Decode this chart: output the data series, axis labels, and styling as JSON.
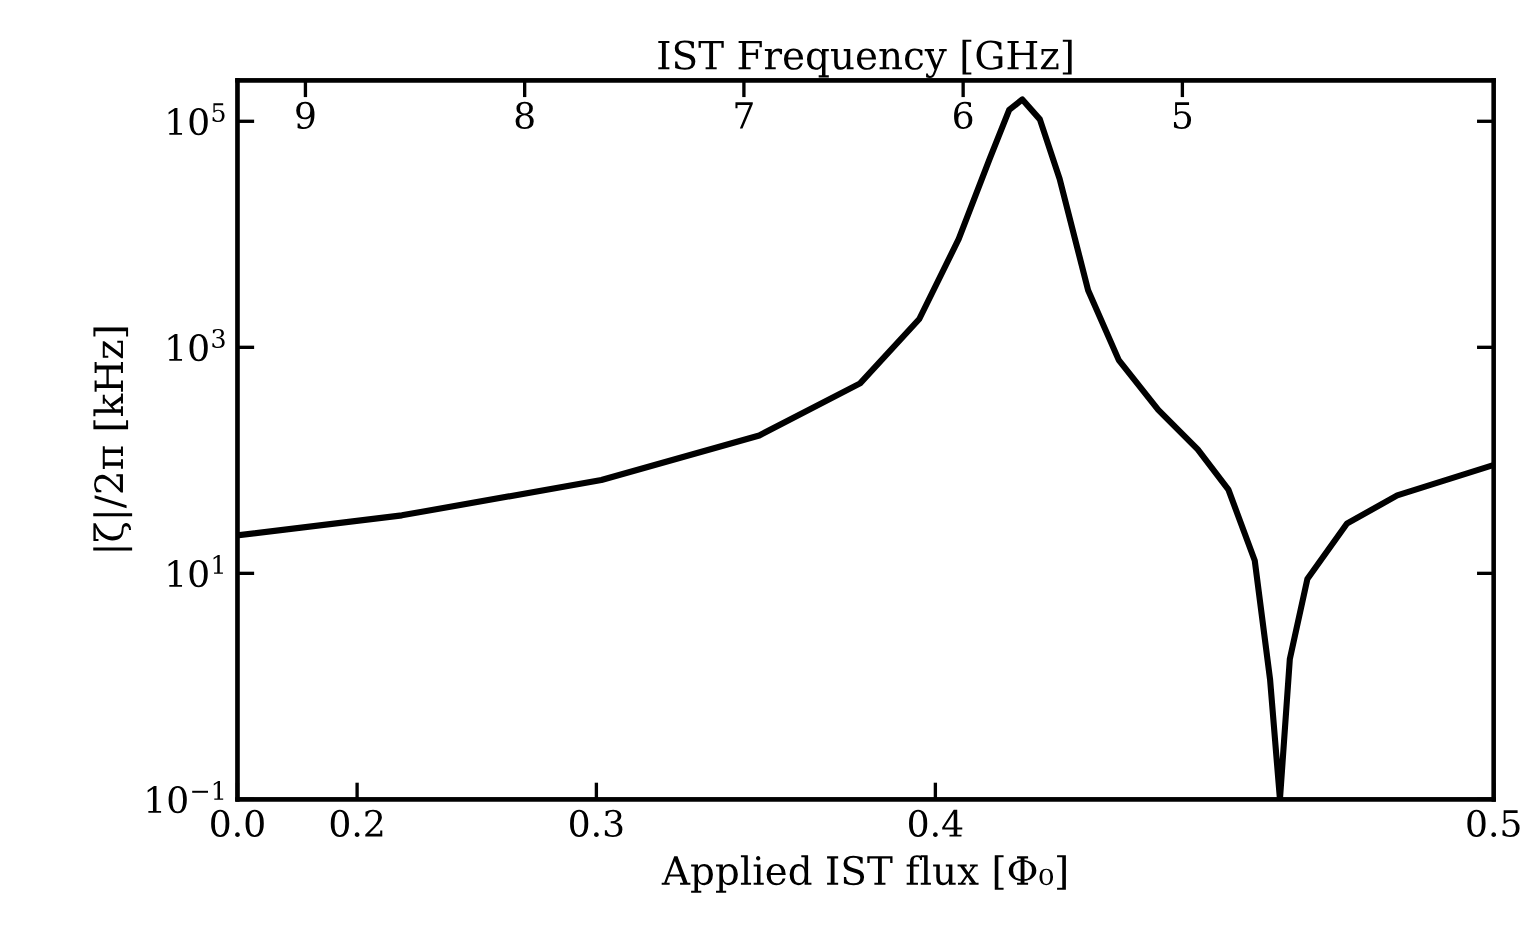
{
  "chart_data": {
    "type": "line",
    "x2label": "IST Frequency [GHz]",
    "xlabel": "Applied IST flux [Φ₀]",
    "ylabel": "|ζ|/2π [kHz]",
    "categories": [
      "0.0",
      null,
      null,
      null,
      null,
      null,
      "0.2",
      null,
      null,
      null,
      null,
      null,
      null,
      null,
      null,
      null,
      null,
      null,
      "0.3",
      null,
      null,
      null,
      null,
      null,
      null,
      null,
      null,
      null,
      null,
      null,
      null,
      null,
      null,
      null,
      null,
      "0.4",
      null,
      null,
      null,
      null,
      null,
      null,
      null,
      null,
      null,
      null,
      null,
      null,
      null,
      null,
      null,
      null,
      null,
      null,
      null,
      null,
      null,
      null,
      null,
      null,
      null,
      null,
      null,
      "0.5"
    ],
    "series": [
      {
        "color": "#000000",
        "axis": "x2",
        "x": [
          9.31,
          8.56,
          7.65,
          6.93,
          6.47,
          6.2,
          6.02,
          5.88,
          5.79,
          5.73,
          5.65,
          5.56,
          5.43,
          5.29,
          5.11,
          4.93,
          4.79,
          4.67,
          4.6,
          4.555,
          4.51,
          4.43,
          4.25,
          4.02,
          3.58
        ],
        "values": [
          21.7,
          32.6,
          67,
          166,
          480,
          1780,
          9100,
          46000,
          126000,
          156000,
          104000,
          31000,
          3200,
          770,
          280,
          125,
          55,
          13,
          1.15,
          0.1,
          1.74,
          8.9,
          27.5,
          49,
          91
        ]
      }
    ],
    "x2lim": [
      9.31,
      3.58
    ],
    "x2ticks": [
      9,
      8,
      7,
      6,
      5
    ],
    "log": "y",
    "ylim": [
      0.1,
      230000
    ],
    "yticks": [
      {
        "value": 0.1,
        "label": "10$^{−1}$"
      },
      {
        "value": 10,
        "label": "10$^{1}$"
      },
      {
        "value": 1000,
        "label": "10$^{3}$"
      },
      {
        "value": 100000,
        "label": "10$^{5}$"
      }
    ],
    "grid": false,
    "legend": false,
    "marker": "none",
    "line_style": "solid"
  }
}
